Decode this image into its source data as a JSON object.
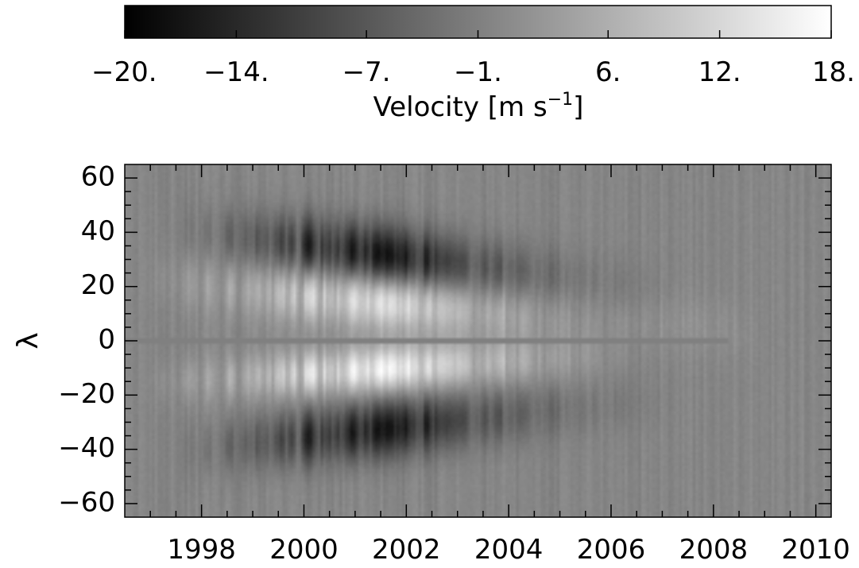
{
  "chart_data": {
    "type": "heatmap",
    "title": "",
    "xlabel": "",
    "ylabel": "λ",
    "xlim": [
      1996.5,
      2010.3
    ],
    "ylim": [
      -65,
      65
    ],
    "x_ticks": [
      1998,
      2000,
      2002,
      2004,
      2006,
      2008,
      2010
    ],
    "x_tick_labels": [
      "1998",
      "2000",
      "2002",
      "2004",
      "2006",
      "2008",
      "2010"
    ],
    "y_ticks": [
      60,
      40,
      20,
      0,
      -20,
      -40,
      -60
    ],
    "y_tick_labels": [
      "60",
      "40",
      "20",
      "0",
      "−20",
      "−40",
      "−60"
    ],
    "colorbar": {
      "label_main": "Velocity [m s",
      "label_sup": "−1",
      "label_end": "]",
      "range": [
        -20,
        18
      ],
      "ticks": [
        -20,
        -14,
        -7,
        -1,
        6,
        12,
        18
      ],
      "tick_labels": [
        "−20.",
        "−14.",
        "−7.",
        "−1.",
        "6.",
        "12.",
        "18."
      ],
      "colormap": "grayscale",
      "low_color": "#000000",
      "high_color": "#ffffff"
    },
    "features": [
      {
        "kind": "band",
        "hemisphere": "north",
        "sign": "positive",
        "t_start": 1997.2,
        "t_end": 2008.6,
        "lat_start": 22,
        "lat_end": 4,
        "amp": 12
      },
      {
        "kind": "band",
        "hemisphere": "north",
        "sign": "negative",
        "t_start": 1997.8,
        "t_end": 2006.8,
        "lat_start": 40,
        "lat_end": 18,
        "amp": -14
      },
      {
        "kind": "band",
        "hemisphere": "south",
        "sign": "positive",
        "t_start": 1997.2,
        "t_end": 2006.0,
        "lat_start": -15,
        "lat_end": -6,
        "amp": 13
      },
      {
        "kind": "band",
        "hemisphere": "south",
        "sign": "negative",
        "t_start": 1997.8,
        "t_end": 2006.8,
        "lat_start": -40,
        "lat_end": -22,
        "amp": -13
      }
    ],
    "equator_value": -1,
    "equator_line_end": 2008.3
  }
}
